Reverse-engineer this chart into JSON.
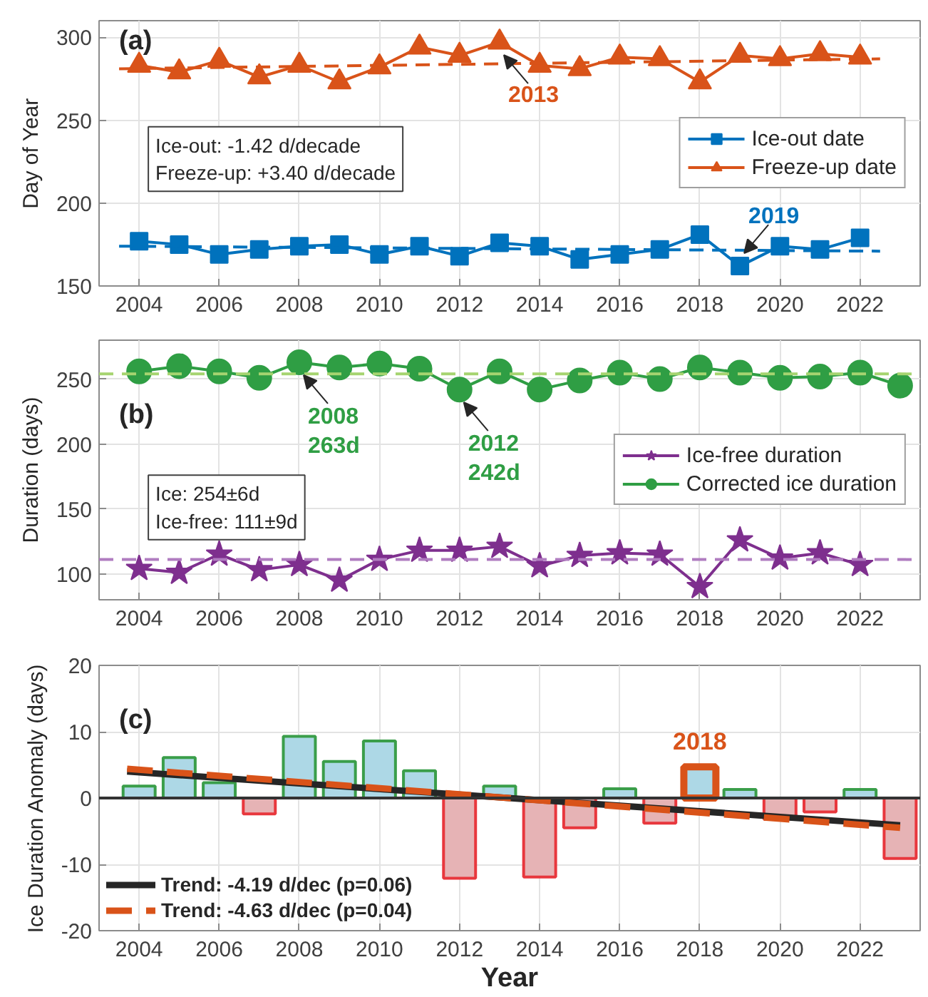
{
  "chart_data": [
    {
      "type": "line",
      "title": "(a)",
      "ylabel": "Day of Year",
      "x": [
        2004,
        2005,
        2006,
        2007,
        2008,
        2009,
        2010,
        2011,
        2012,
        2013,
        2014,
        2015,
        2016,
        2017,
        2018,
        2019,
        2020,
        2021,
        2022
      ],
      "xlim": [
        2003,
        2023.5
      ],
      "xticks": [
        2004,
        2006,
        2008,
        2010,
        2012,
        2014,
        2016,
        2018,
        2020,
        2022
      ],
      "ylim": [
        150,
        310
      ],
      "yticks": [
        150,
        200,
        250,
        300
      ],
      "grid": true,
      "legend": "right",
      "series": [
        {
          "name": "Ice-out date",
          "color": "#0072bd",
          "marker": "square",
          "values": [
            177,
            175,
            169,
            172,
            174,
            175,
            169,
            174,
            168,
            176,
            174,
            166,
            169,
            172,
            181,
            162,
            174,
            172,
            179
          ]
        },
        {
          "name": "Freeze-up date",
          "color": "#d95319",
          "marker": "triangle",
          "values": [
            283,
            279,
            286,
            276,
            283,
            273,
            282,
            294,
            289,
            297,
            283,
            281,
            288,
            287,
            273,
            289,
            287,
            290,
            288
          ]
        },
        {
          "type": "line",
          "color": "#0072bd",
          "line_style": "dashed",
          "marker": "none",
          "x": [
            2003.5,
            2022.5
          ],
          "values": [
            174,
            171
          ]
        },
        {
          "type": "line",
          "color": "#d95319",
          "line_style": "dashed",
          "marker": "none",
          "x": [
            2003.5,
            2022.5
          ],
          "values": [
            281,
            287
          ]
        }
      ],
      "annotations": [
        "Ice-out: -1.42 d/decade\nFreeze-up: +3.40 d/decade",
        {
          "text": "2013",
          "x": 2013,
          "y": 297
        },
        {
          "text": "2019",
          "x": 2019,
          "y": 162
        }
      ]
    },
    {
      "type": "line",
      "title": "(b)",
      "ylabel": "Duration (days)",
      "xlim": [
        2003,
        2023.5
      ],
      "xticks": [
        2004,
        2006,
        2008,
        2010,
        2012,
        2014,
        2016,
        2018,
        2020,
        2022
      ],
      "ylim": [
        80,
        280
      ],
      "yticks": [
        100,
        150,
        200,
        250
      ],
      "grid": true,
      "legend": "right",
      "series": [
        {
          "name": "Ice-free duration",
          "color": "#7e2f8e",
          "marker": "star",
          "x": [
            2004,
            2005,
            2006,
            2007,
            2008,
            2009,
            2010,
            2011,
            2012,
            2013,
            2014,
            2015,
            2016,
            2017,
            2018,
            2019,
            2020,
            2021,
            2022
          ],
          "values": [
            104,
            101,
            115,
            103,
            107,
            95,
            111,
            118,
            118,
            121,
            106,
            114,
            116,
            115,
            90,
            126,
            112,
            116,
            107
          ]
        },
        {
          "name": "Corrected ice duration",
          "color": "#2f9e44",
          "marker": "circle",
          "x": [
            2004,
            2005,
            2006,
            2007,
            2008,
            2009,
            2010,
            2011,
            2012,
            2013,
            2014,
            2015,
            2016,
            2017,
            2018,
            2019,
            2020,
            2021,
            2022,
            2023
          ],
          "values": [
            256,
            260,
            256,
            251,
            263,
            259,
            262,
            258,
            242,
            256,
            242,
            249,
            255,
            250,
            259,
            255,
            251,
            252,
            255,
            245
          ]
        }
      ],
      "ref_lines": [
        {
          "axis": "y",
          "value": 254,
          "color": "#a6d470",
          "line_style": "dashed"
        },
        {
          "axis": "y",
          "value": 111,
          "color": "#b07cc0",
          "line_style": "dashed"
        }
      ],
      "annotations": [
        "Ice: 254±6d\nIce-free: 111±9d",
        {
          "text": "2008\n263d",
          "x": 2008,
          "y": 263
        },
        {
          "text": "2012\n242d",
          "x": 2012,
          "y": 242
        }
      ]
    },
    {
      "type": "bar",
      "title": "(c)",
      "xlabel": "Year",
      "ylabel": "Ice Duration Anomaly (days)",
      "x": [
        2004,
        2005,
        2006,
        2007,
        2008,
        2009,
        2010,
        2011,
        2012,
        2013,
        2014,
        2015,
        2016,
        2017,
        2018,
        2019,
        2020,
        2021,
        2022,
        2023
      ],
      "xlim": [
        2003,
        2023.5
      ],
      "xticks": [
        2004,
        2006,
        2008,
        2010,
        2012,
        2014,
        2016,
        2018,
        2020,
        2022
      ],
      "ylim": [
        -20,
        20
      ],
      "yticks": [
        -20,
        -10,
        0,
        10,
        20
      ],
      "grid": true,
      "legend": "bottom left",
      "series": [
        {
          "type": "bar",
          "colors": [
            "#add8e6",
            "#add8e6",
            "#add8e6",
            "#e6b3b5",
            "#add8e6",
            "#add8e6",
            "#add8e6",
            "#add8e6",
            "#e6b3b5",
            "#add8e6",
            "#e6b3b5",
            "#e6b3b5",
            "#add8e6",
            "#e6b3b5",
            "#add8e6",
            "#add8e6",
            "#e6b3b5",
            "#e6b3b5",
            "#add8e6",
            "#e6b3b5"
          ],
          "values": [
            1.8,
            6.1,
            2.3,
            -2.4,
            9.3,
            5.5,
            8.6,
            4.1,
            -12.1,
            1.8,
            -11.9,
            -4.5,
            1.4,
            -3.8,
            4.7,
            1.3,
            -3.2,
            -2.1,
            1.3,
            -9.1
          ]
        },
        {
          "type": "line",
          "name": "Trend: -4.19 d/dec (p=0.06)",
          "color": "#262626",
          "line_style": "solid",
          "x": [
            2003.7,
            2023
          ],
          "values": [
            4.0,
            -4.1
          ]
        },
        {
          "type": "line",
          "name": "Trend: -4.63 d/dec (p=0.04)",
          "color": "#d95319",
          "line_style": "dashed",
          "x": [
            2003.7,
            2023
          ],
          "values": [
            4.4,
            -4.5
          ]
        }
      ],
      "ref_lines": [
        {
          "axis": "y",
          "value": 0,
          "color": "#333333"
        }
      ],
      "annotations": [
        {
          "text": "2018",
          "x": 2018,
          "y": 4.7
        }
      ]
    }
  ]
}
